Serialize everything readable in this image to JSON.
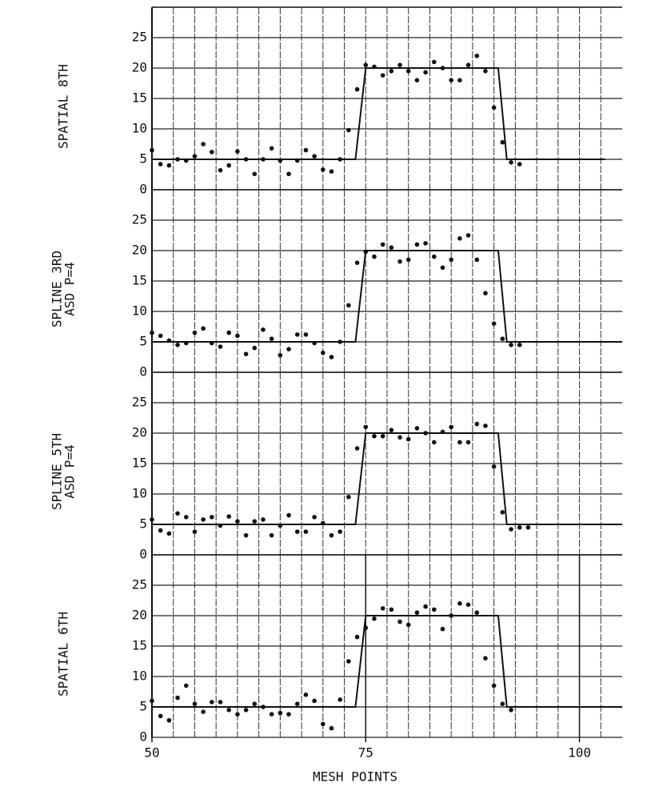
{
  "chart_data": [
    {
      "type": "line",
      "ylabel": [
        "SPATIAL 8TH"
      ],
      "xlim": [
        50,
        105
      ],
      "ylim": [
        0,
        30
      ],
      "yticks": [
        0,
        5,
        10,
        15,
        20,
        25
      ],
      "xgrid": [
        52.5,
        55,
        57.5,
        60,
        62.5,
        65,
        67.5,
        70,
        72.5,
        75,
        77.5,
        80,
        82.5,
        85,
        87.5,
        90,
        92.5,
        95,
        97.5,
        100,
        102.5
      ],
      "color": "#111",
      "series": [
        {
          "style": "line",
          "x": [
            50,
            73.8,
            75,
            90.5,
            91.5,
            103
          ],
          "values": [
            5,
            5,
            20,
            20,
            5,
            5
          ]
        },
        {
          "style": "markers",
          "x": [
            50,
            51,
            52,
            53,
            54,
            55,
            56,
            57,
            58,
            59,
            60,
            61,
            62,
            63,
            64,
            65,
            66,
            67,
            68,
            69,
            70,
            71,
            72,
            73,
            74,
            75,
            76,
            77,
            78,
            79,
            80,
            81,
            82,
            83,
            84,
            85,
            86,
            87,
            88,
            89,
            90,
            91,
            92,
            93
          ],
          "values": [
            6.5,
            4.2,
            4,
            5,
            4.8,
            5.5,
            7.5,
            6.2,
            3.2,
            4,
            6.3,
            5,
            2.6,
            5,
            6.8,
            4.8,
            2.6,
            4.8,
            6.5,
            5.5,
            3.3,
            3,
            5,
            9.8,
            16.5,
            20.5,
            20.2,
            18.8,
            19.5,
            20.5,
            19.5,
            18,
            19.3,
            21,
            20,
            18,
            18,
            20.5,
            22,
            19.5,
            13.5,
            7.8,
            4.5,
            4.2
          ]
        }
      ]
    },
    {
      "type": "line",
      "ylabel": [
        "SPLINE 3RD",
        "ASD P=4"
      ],
      "xlim": [
        50,
        105
      ],
      "ylim": [
        0,
        30
      ],
      "yticks": [
        0,
        5,
        10,
        15,
        20,
        25
      ],
      "xgrid": [
        52.5,
        55,
        57.5,
        60,
        62.5,
        65,
        67.5,
        70,
        72.5,
        75,
        77.5,
        80,
        82.5,
        85,
        87.5,
        90,
        92.5,
        95,
        97.5,
        100,
        102.5
      ],
      "color": "#111",
      "series": [
        {
          "style": "line",
          "x": [
            50,
            73.8,
            75,
            90.5,
            91.5,
            105
          ],
          "values": [
            5,
            5,
            20,
            20,
            5,
            5
          ]
        },
        {
          "style": "markers",
          "x": [
            50,
            51,
            52,
            53,
            54,
            55,
            56,
            57,
            58,
            59,
            60,
            61,
            62,
            63,
            64,
            65,
            66,
            67,
            68,
            69,
            70,
            71,
            72,
            73,
            74,
            75,
            76,
            77,
            78,
            79,
            80,
            81,
            82,
            83,
            84,
            85,
            86,
            87,
            88,
            89,
            90,
            91,
            92,
            93
          ],
          "values": [
            6.5,
            6,
            5.2,
            4.5,
            4.8,
            6.5,
            7.2,
            4.8,
            4.2,
            6.5,
            6,
            3,
            4,
            7,
            5.5,
            2.8,
            3.8,
            6.2,
            6.2,
            4.8,
            3.2,
            2.5,
            5,
            11,
            18,
            19.8,
            19,
            21,
            20.5,
            18.2,
            18.5,
            21,
            21.2,
            19,
            17.2,
            18.5,
            22,
            22.5,
            18.5,
            13,
            8,
            5.5,
            4.5,
            4.5
          ]
        }
      ]
    },
    {
      "type": "line",
      "ylabel": [
        "SPLINE 5TH",
        "ASD P=4"
      ],
      "xlim": [
        50,
        105
      ],
      "ylim": [
        0,
        30
      ],
      "yticks": [
        0,
        5,
        10,
        15,
        20,
        25
      ],
      "xgrid": [
        52.5,
        55,
        57.5,
        60,
        62.5,
        65,
        67.5,
        70,
        72.5,
        75,
        77.5,
        80,
        82.5,
        85,
        87.5,
        90,
        92.5,
        95,
        97.5,
        100,
        102.5
      ],
      "color": "#111",
      "series": [
        {
          "style": "line",
          "x": [
            50,
            73.8,
            75,
            90.5,
            91.5,
            105
          ],
          "values": [
            5,
            5,
            20,
            20,
            5,
            5
          ]
        },
        {
          "style": "markers",
          "x": [
            50,
            51,
            52,
            53,
            54,
            55,
            56,
            57,
            58,
            59,
            60,
            61,
            62,
            63,
            64,
            65,
            66,
            67,
            68,
            69,
            70,
            71,
            72,
            73,
            74,
            75,
            76,
            77,
            78,
            79,
            80,
            81,
            82,
            83,
            84,
            85,
            86,
            87,
            88,
            89,
            90,
            91,
            92,
            93,
            94
          ],
          "values": [
            5.8,
            4,
            3.5,
            6.8,
            6.2,
            3.8,
            5.8,
            6.2,
            4.8,
            6.3,
            5.5,
            3.2,
            5.5,
            5.8,
            3.2,
            4.8,
            6.5,
            3.8,
            3.8,
            6.2,
            5.2,
            3.2,
            3.8,
            9.5,
            17.5,
            21,
            19.5,
            19.5,
            20.5,
            19.3,
            19,
            20.8,
            20,
            18.5,
            20.2,
            21,
            18.5,
            18.5,
            21.5,
            21.2,
            14.5,
            7,
            4.2,
            4.5,
            4.5
          ]
        }
      ]
    },
    {
      "type": "line",
      "ylabel": [
        "SPATIAL 6TH"
      ],
      "xlabel": "MESH POINTS",
      "xlim": [
        50,
        105
      ],
      "ylim": [
        0,
        30
      ],
      "yticks": [
        0,
        5,
        10,
        15,
        20,
        25
      ],
      "xticks": [
        50,
        75,
        100
      ],
      "xgrid": [
        52.5,
        55,
        57.5,
        60,
        62.5,
        65,
        67.5,
        70,
        72.5,
        75,
        77.5,
        80,
        82.5,
        85,
        87.5,
        90,
        92.5,
        95,
        97.5,
        100,
        102.5
      ],
      "color": "#111",
      "series": [
        {
          "style": "line",
          "x": [
            50,
            73.8,
            75,
            90.5,
            91.5,
            105
          ],
          "values": [
            5,
            5,
            20,
            20,
            5,
            5
          ]
        },
        {
          "style": "markers",
          "x": [
            50,
            51,
            52,
            53,
            54,
            55,
            56,
            57,
            58,
            59,
            60,
            61,
            62,
            63,
            64,
            65,
            66,
            67,
            68,
            69,
            70,
            71,
            72,
            73,
            74,
            75,
            76,
            77,
            78,
            79,
            80,
            81,
            82,
            83,
            84,
            85,
            86,
            87,
            88,
            89,
            90,
            91,
            92
          ],
          "values": [
            6,
            3.5,
            2.8,
            6.5,
            8.5,
            5.5,
            4.2,
            5.8,
            5.8,
            4.5,
            3.8,
            4.5,
            5.5,
            5,
            3.8,
            4,
            3.8,
            5.5,
            7,
            6,
            2.2,
            1.5,
            6.2,
            12.5,
            16.5,
            18,
            19.5,
            21.2,
            21,
            19,
            18.5,
            20.5,
            21.5,
            21,
            17.8,
            20,
            22,
            21.8,
            20.5,
            13,
            8.5,
            5.5,
            4.5
          ]
        }
      ]
    }
  ]
}
